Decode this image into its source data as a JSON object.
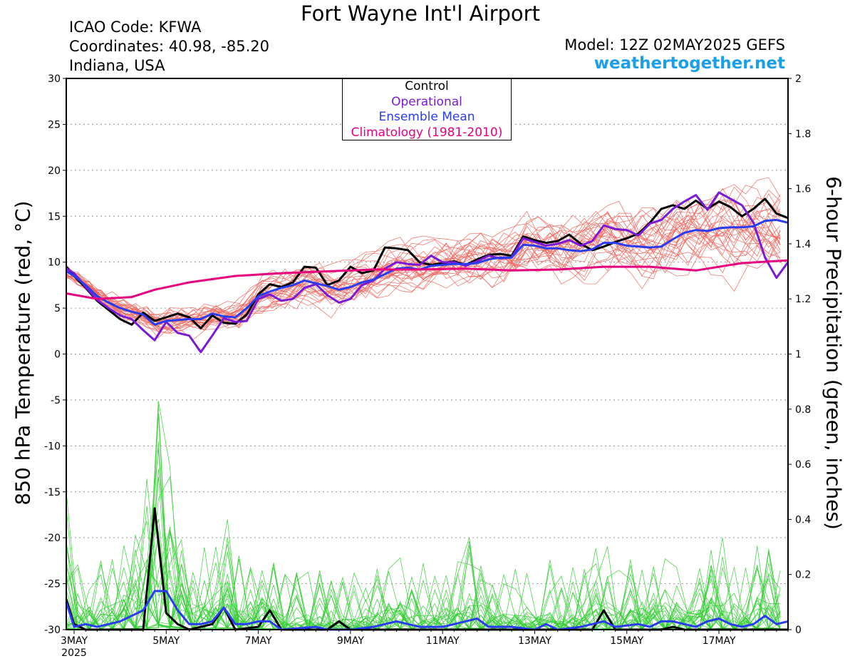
{
  "header": {
    "title": "Fort Wayne Int'l Airport",
    "icao": "ICAO Code: KFWA",
    "coordinates": "Coordinates: 40.98, -85.20",
    "region": "Indiana, USA",
    "model": "Model: 12Z 02MAY2025 GEFS",
    "site": "weathertogether.net"
  },
  "legend": [
    {
      "label": "Control",
      "color": "#000000"
    },
    {
      "label": "Operational",
      "color": "#7a1ad6"
    },
    {
      "label": "Ensemble Mean",
      "color": "#2a3cf0"
    },
    {
      "label": "Climatology (1981-2010)",
      "color": "#e6007e"
    }
  ],
  "colors": {
    "member_temp": "#f0645a",
    "member_precip": "#33cc33",
    "control": "#000000",
    "operational": "#7a1ad6",
    "mean": "#2a3cf0",
    "climatology": "#e6007e"
  },
  "chart_data": {
    "type": "line",
    "title": "Fort Wayne Int'l Airport",
    "ylabel": "850 hPa Temperature (red, °C)",
    "y2label": "6-hour Precipitation (green, inches)",
    "ylim": [
      -30,
      30
    ],
    "y2lim": [
      0,
      2
    ],
    "yticks": [
      "30",
      "25",
      "20",
      "15",
      "10",
      "5",
      "0",
      "-5",
      "-10",
      "-15",
      "-20",
      "-25",
      "-30"
    ],
    "y2ticks": [
      "2",
      "1.8",
      "1.6",
      "1.4",
      "1.2",
      "1",
      "0.8",
      "0.6",
      "0.4",
      "0.2",
      "0"
    ],
    "xlim": [
      2.83,
      18.5
    ],
    "x_unit": "day of May 2025",
    "xticks": [
      {
        "x": 3,
        "label": "3MAY",
        "sub": "2025"
      },
      {
        "x": 5,
        "label": "5MAY",
        "sub": ""
      },
      {
        "x": 7,
        "label": "7MAY",
        "sub": ""
      },
      {
        "x": 9,
        "label": "9MAY",
        "sub": ""
      },
      {
        "x": 11,
        "label": "11MAY",
        "sub": ""
      },
      {
        "x": 13,
        "label": "13MAY",
        "sub": ""
      },
      {
        "x": 15,
        "label": "15MAY",
        "sub": ""
      },
      {
        "x": 17,
        "label": "17MAY",
        "sub": ""
      }
    ],
    "grid": true,
    "temp_series": [
      {
        "name": "Control",
        "color": "#000000",
        "points": [
          [
            2.83,
            9.5
          ],
          [
            3.0,
            8.5
          ],
          [
            3.25,
            7.2
          ],
          [
            3.5,
            5.8
          ],
          [
            3.75,
            4.8
          ],
          [
            4.0,
            3.8
          ],
          [
            4.25,
            3.2
          ],
          [
            4.5,
            4.5
          ],
          [
            4.75,
            3.6
          ],
          [
            5.0,
            4.0
          ],
          [
            5.25,
            4.4
          ],
          [
            5.5,
            4.0
          ],
          [
            5.75,
            2.8
          ],
          [
            6.0,
            4.2
          ],
          [
            6.25,
            3.4
          ],
          [
            6.5,
            3.3
          ],
          [
            6.75,
            4.3
          ],
          [
            7.0,
            6.5
          ],
          [
            7.25,
            7.6
          ],
          [
            7.5,
            7.3
          ],
          [
            7.75,
            7.8
          ],
          [
            8.0,
            9.5
          ],
          [
            8.25,
            9.4
          ],
          [
            8.5,
            7.5
          ],
          [
            8.75,
            8.0
          ],
          [
            9.0,
            9.5
          ],
          [
            9.25,
            8.8
          ],
          [
            9.5,
            9.1
          ],
          [
            9.75,
            11.6
          ],
          [
            10.0,
            11.5
          ],
          [
            10.25,
            11.3
          ],
          [
            10.5,
            10.0
          ],
          [
            10.75,
            9.7
          ],
          [
            11.0,
            9.9
          ],
          [
            11.25,
            10.1
          ],
          [
            11.5,
            9.7
          ],
          [
            11.75,
            10.3
          ],
          [
            12.0,
            10.8
          ],
          [
            12.25,
            10.9
          ],
          [
            12.5,
            10.7
          ],
          [
            12.75,
            12.8
          ],
          [
            13.0,
            12.4
          ],
          [
            13.25,
            12.1
          ],
          [
            13.5,
            12.3
          ],
          [
            13.75,
            13.0
          ],
          [
            14.0,
            12.0
          ],
          [
            14.25,
            11.3
          ],
          [
            14.5,
            11.7
          ],
          [
            14.75,
            12.2
          ],
          [
            15.0,
            12.6
          ],
          [
            15.25,
            13.1
          ],
          [
            15.5,
            14.3
          ],
          [
            15.75,
            15.8
          ],
          [
            16.0,
            16.2
          ],
          [
            16.25,
            15.8
          ],
          [
            16.5,
            16.7
          ],
          [
            16.75,
            15.8
          ],
          [
            17.0,
            16.6
          ],
          [
            17.25,
            16.0
          ],
          [
            17.5,
            15.0
          ],
          [
            17.75,
            15.8
          ],
          [
            18.0,
            16.9
          ],
          [
            18.25,
            15.3
          ],
          [
            18.5,
            14.8
          ]
        ]
      },
      {
        "name": "Operational",
        "color": "#7a1ad6",
        "points": [
          [
            2.83,
            9.3
          ],
          [
            3.0,
            8.8
          ],
          [
            3.25,
            7.3
          ],
          [
            3.5,
            5.9
          ],
          [
            3.75,
            5.0
          ],
          [
            4.0,
            4.2
          ],
          [
            4.25,
            3.8
          ],
          [
            4.5,
            2.6
          ],
          [
            4.75,
            1.5
          ],
          [
            5.0,
            3.5
          ],
          [
            5.25,
            2.3
          ],
          [
            5.5,
            2.0
          ],
          [
            5.75,
            0.2
          ],
          [
            6.0,
            2.0
          ],
          [
            6.25,
            3.9
          ],
          [
            6.5,
            3.5
          ],
          [
            6.75,
            3.6
          ],
          [
            7.0,
            6.0
          ],
          [
            7.25,
            6.5
          ],
          [
            7.5,
            5.8
          ],
          [
            7.75,
            6.0
          ],
          [
            8.0,
            7.2
          ],
          [
            8.25,
            7.6
          ],
          [
            8.5,
            6.4
          ],
          [
            8.75,
            5.6
          ],
          [
            9.0,
            6.0
          ],
          [
            9.25,
            7.5
          ],
          [
            9.5,
            8.0
          ],
          [
            9.75,
            9.3
          ],
          [
            10.0,
            10.0
          ],
          [
            10.25,
            9.8
          ],
          [
            10.5,
            9.7
          ],
          [
            10.75,
            10.7
          ],
          [
            11.0,
            10.0
          ],
          [
            11.25,
            10.0
          ],
          [
            11.5,
            9.6
          ],
          [
            11.75,
            10.1
          ],
          [
            12.0,
            10.7
          ],
          [
            12.25,
            10.4
          ],
          [
            12.5,
            10.5
          ],
          [
            12.75,
            12.6
          ],
          [
            13.0,
            12.2
          ],
          [
            13.25,
            11.8
          ],
          [
            13.5,
            12.0
          ],
          [
            13.75,
            12.4
          ],
          [
            14.0,
            11.8
          ],
          [
            14.25,
            12.3
          ],
          [
            14.5,
            14.0
          ],
          [
            14.75,
            13.6
          ],
          [
            15.0,
            13.5
          ],
          [
            15.25,
            12.9
          ],
          [
            15.5,
            14.2
          ],
          [
            15.75,
            14.6
          ],
          [
            16.0,
            15.8
          ],
          [
            16.25,
            16.6
          ],
          [
            16.5,
            17.3
          ],
          [
            16.75,
            15.7
          ],
          [
            17.0,
            17.6
          ],
          [
            17.25,
            16.9
          ],
          [
            17.5,
            16.2
          ],
          [
            17.75,
            14.3
          ],
          [
            18.0,
            10.5
          ],
          [
            18.25,
            8.3
          ],
          [
            18.5,
            10.0
          ]
        ]
      },
      {
        "name": "Ensemble Mean",
        "color": "#2a3cf0",
        "points": [
          [
            2.83,
            9.0
          ],
          [
            3.0,
            8.5
          ],
          [
            3.25,
            7.5
          ],
          [
            3.5,
            6.3
          ],
          [
            3.75,
            5.6
          ],
          [
            4.0,
            5.0
          ],
          [
            4.25,
            4.6
          ],
          [
            4.5,
            4.3
          ],
          [
            4.75,
            3.2
          ],
          [
            5.0,
            3.6
          ],
          [
            5.25,
            3.7
          ],
          [
            5.5,
            3.8
          ],
          [
            5.75,
            3.8
          ],
          [
            6.0,
            4.4
          ],
          [
            6.25,
            4.1
          ],
          [
            6.5,
            4.0
          ],
          [
            6.75,
            5.0
          ],
          [
            7.0,
            6.3
          ],
          [
            7.25,
            6.8
          ],
          [
            7.5,
            7.2
          ],
          [
            7.75,
            7.5
          ],
          [
            8.0,
            8.0
          ],
          [
            8.25,
            7.7
          ],
          [
            8.5,
            7.4
          ],
          [
            8.75,
            7.0
          ],
          [
            9.0,
            7.3
          ],
          [
            9.25,
            7.8
          ],
          [
            9.5,
            8.1
          ],
          [
            9.75,
            8.7
          ],
          [
            10.0,
            9.3
          ],
          [
            10.25,
            9.4
          ],
          [
            10.5,
            9.2
          ],
          [
            10.75,
            9.6
          ],
          [
            11.0,
            9.7
          ],
          [
            11.25,
            9.8
          ],
          [
            11.5,
            9.8
          ],
          [
            11.75,
            9.9
          ],
          [
            12.0,
            10.3
          ],
          [
            12.25,
            10.5
          ],
          [
            12.5,
            10.5
          ],
          [
            12.75,
            11.9
          ],
          [
            13.0,
            11.8
          ],
          [
            13.25,
            11.5
          ],
          [
            13.5,
            11.5
          ],
          [
            13.75,
            11.3
          ],
          [
            14.0,
            11.2
          ],
          [
            14.25,
            11.4
          ],
          [
            14.5,
            12.1
          ],
          [
            14.75,
            12.1
          ],
          [
            15.0,
            11.8
          ],
          [
            15.25,
            11.7
          ],
          [
            15.5,
            11.6
          ],
          [
            15.75,
            11.7
          ],
          [
            16.0,
            12.5
          ],
          [
            16.25,
            13.2
          ],
          [
            16.5,
            13.5
          ],
          [
            16.75,
            13.4
          ],
          [
            17.0,
            13.7
          ],
          [
            17.25,
            13.8
          ],
          [
            17.5,
            13.8
          ],
          [
            17.75,
            13.9
          ],
          [
            18.0,
            14.5
          ],
          [
            18.25,
            14.6
          ],
          [
            18.5,
            14.3
          ]
        ]
      },
      {
        "name": "Climatology (1981-2010)",
        "color": "#e6007e",
        "points": [
          [
            2.83,
            6.6
          ],
          [
            3.5,
            6.0
          ],
          [
            4.25,
            6.2
          ],
          [
            4.75,
            7.0
          ],
          [
            5.5,
            7.8
          ],
          [
            6.5,
            8.5
          ],
          [
            7.5,
            8.8
          ],
          [
            8.5,
            9.0
          ],
          [
            9.5,
            9.2
          ],
          [
            10.5,
            9.2
          ],
          [
            11.5,
            9.3
          ],
          [
            12.5,
            9.1
          ],
          [
            13.5,
            9.2
          ],
          [
            14.5,
            9.5
          ],
          [
            15.5,
            9.5
          ],
          [
            16.5,
            9.1
          ],
          [
            17.5,
            9.9
          ],
          [
            18.5,
            10.2
          ]
        ]
      }
    ],
    "precip_series": [
      {
        "name": "Control",
        "color": "#000000",
        "points": [
          [
            2.83,
            0.11
          ],
          [
            3.0,
            0.02
          ],
          [
            3.25,
            0.0
          ],
          [
            4.5,
            0.0
          ],
          [
            4.75,
            0.44
          ],
          [
            5.0,
            0.06
          ],
          [
            5.25,
            0.02
          ],
          [
            5.5,
            0.0
          ],
          [
            6.0,
            0.02
          ],
          [
            6.25,
            0.08
          ],
          [
            6.5,
            0.0
          ],
          [
            7.0,
            0.01
          ],
          [
            7.25,
            0.07
          ],
          [
            7.5,
            0.0
          ],
          [
            8.5,
            0.0
          ],
          [
            8.75,
            0.03
          ],
          [
            9.0,
            0.0
          ],
          [
            14.25,
            0.0
          ],
          [
            14.5,
            0.07
          ],
          [
            14.75,
            0.0
          ],
          [
            15.75,
            0.0
          ],
          [
            16.0,
            0.01
          ],
          [
            16.25,
            0.0
          ],
          [
            18.5,
            0.0
          ]
        ]
      },
      {
        "name": "Ensemble Mean",
        "color": "#2a3cf0",
        "points": [
          [
            2.83,
            0.1
          ],
          [
            3.0,
            0.01
          ],
          [
            3.25,
            0.02
          ],
          [
            3.5,
            0.01
          ],
          [
            3.75,
            0.02
          ],
          [
            4.0,
            0.03
          ],
          [
            4.25,
            0.05
          ],
          [
            4.5,
            0.07
          ],
          [
            4.75,
            0.14
          ],
          [
            5.0,
            0.14
          ],
          [
            5.25,
            0.07
          ],
          [
            5.5,
            0.02
          ],
          [
            5.75,
            0.02
          ],
          [
            6.0,
            0.03
          ],
          [
            6.25,
            0.08
          ],
          [
            6.5,
            0.02
          ],
          [
            6.75,
            0.02
          ],
          [
            7.0,
            0.03
          ],
          [
            7.25,
            0.03
          ],
          [
            7.5,
            0.0
          ],
          [
            8.25,
            0.01
          ],
          [
            8.5,
            0.0
          ],
          [
            9.0,
            0.0
          ],
          [
            9.5,
            0.01
          ],
          [
            10.0,
            0.03
          ],
          [
            10.5,
            0.01
          ],
          [
            11.0,
            0.01
          ],
          [
            11.25,
            0.02
          ],
          [
            11.5,
            0.03
          ],
          [
            11.75,
            0.04
          ],
          [
            12.0,
            0.01
          ],
          [
            12.5,
            0.01
          ],
          [
            13.0,
            0.0
          ],
          [
            13.25,
            0.02
          ],
          [
            13.5,
            0.0
          ],
          [
            14.0,
            0.01
          ],
          [
            14.5,
            0.03
          ],
          [
            14.75,
            0.01
          ],
          [
            15.25,
            0.02
          ],
          [
            15.5,
            0.01
          ],
          [
            15.75,
            0.03
          ],
          [
            16.0,
            0.03
          ],
          [
            16.25,
            0.02
          ],
          [
            16.5,
            0.01
          ],
          [
            16.75,
            0.03
          ],
          [
            17.0,
            0.04
          ],
          [
            17.25,
            0.02
          ],
          [
            17.5,
            0.01
          ],
          [
            17.75,
            0.02
          ],
          [
            18.0,
            0.05
          ],
          [
            18.25,
            0.02
          ],
          [
            18.5,
            0.03
          ]
        ]
      }
    ]
  }
}
